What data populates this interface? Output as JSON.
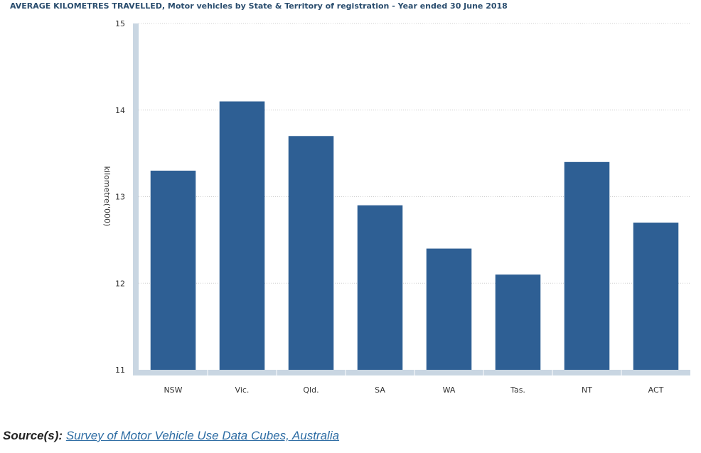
{
  "chart_data": {
    "type": "bar",
    "title": "AVERAGE KILOMETRES TRAVELLED, Motor vehicles by State & Territory of registration - Year ended 30 June 2018",
    "categories": [
      "NSW",
      "Vic.",
      "Qld.",
      "SA",
      "WA",
      "Tas.",
      "NT",
      "ACT"
    ],
    "values": [
      13.3,
      14.1,
      13.7,
      12.9,
      12.4,
      12.1,
      13.4,
      12.7
    ],
    "xlabel": "",
    "ylabel": "kilometre('000)",
    "ylim": [
      11,
      15
    ],
    "yticks": [
      "11",
      "12",
      "13",
      "14",
      "15"
    ],
    "grid": true,
    "bar_color": "#2e5f94"
  },
  "source": {
    "label": "Source(s):",
    "link_text": "Survey of Motor Vehicle Use Data Cubes, Australia"
  }
}
